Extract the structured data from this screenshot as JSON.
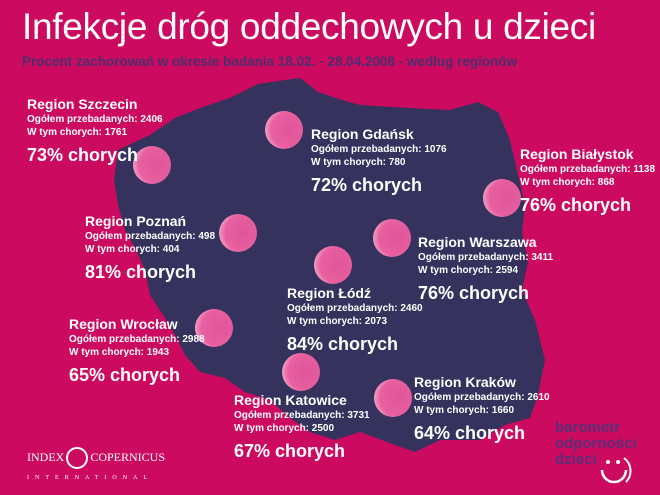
{
  "title": "Infekcje dróg oddechowych u dzieci",
  "subtitle": "Procent zachorowań w okresie badania 18.02. - 28.04.2008 - według regionów",
  "colors": {
    "background": "#cc0a60",
    "map": "#35325e",
    "marker": "#e0559a",
    "brand": "#5a2f78"
  },
  "labels": {
    "total_prefix": "Ogółem przebadanych: ",
    "sick_prefix": "W tym chorych: ",
    "pct_suffix": " chorych"
  },
  "regions": [
    {
      "name": "Region Szczecin",
      "total": "Ogółem przebadanych: 2406",
      "sick": "W tym chorych: 1761",
      "percent": "73% chorych",
      "value": 73
    },
    {
      "name": "Region Gdańsk",
      "total": "Ogółem przebadanych: 1076",
      "sick": "W tym chorych: 780",
      "percent": "72% chorych",
      "value": 72
    },
    {
      "name": "Region Białystok",
      "total": "Ogółem przebadanych: 1138",
      "sick": "W tym chorych: 868",
      "percent": "76% chorych",
      "value": 76
    },
    {
      "name": "Region Poznań",
      "total": "Ogółem przebadanych: 498",
      "sick": "W tym chorych: 404",
      "percent": "81% chorych",
      "value": 81
    },
    {
      "name": "Region Warszawa",
      "total": "Ogółem przebadanych: 3411",
      "sick": "W tym chorych: 2594",
      "percent": "76% chorych",
      "value": 76
    },
    {
      "name": "Region Łódź",
      "total": "Ogółem przebadanych: 2460",
      "sick": "W tym chorych: 2073",
      "percent": "84% chorych",
      "value": 84
    },
    {
      "name": "Region Wrocław",
      "total": "Ogółem przebadanych: 2988",
      "sick": "W tym chorych: 1943",
      "percent": "65% chorych",
      "value": 65
    },
    {
      "name": "Region Katowice",
      "total": "Ogółem przebadanych: 3731",
      "sick": "W tym chorych: 2500",
      "percent": "67% chorych",
      "value": 67
    },
    {
      "name": "Region Kraków",
      "total": "Ogółem przebadanych: 2610",
      "sick": "W tym chorych: 1660",
      "percent": "64% chorych",
      "value": 64
    }
  ],
  "logos": {
    "index_copernicus": {
      "left": "INDEX",
      "right": "COPERNICUS",
      "sub": "INTERNATIONAL"
    },
    "barometr": [
      "barometr",
      "odporności",
      "dzieci"
    ]
  }
}
